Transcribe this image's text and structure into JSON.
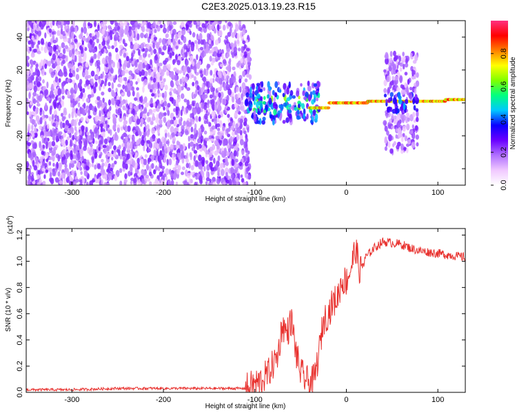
{
  "title": "C2E3.2025.013.19.23.R15",
  "colors": {
    "line": "#e8302d",
    "frame": "#000000",
    "colorbar_gradient": [
      "#ffffff",
      "#f0c8ff",
      "#b070ff",
      "#6a00ff",
      "#0a00ff",
      "#00c8ff",
      "#00ff80",
      "#80ff00",
      "#ffff00",
      "#ff8000",
      "#ff0000",
      "#ff3080"
    ]
  },
  "chart_data": [
    {
      "type": "heatmap",
      "xlabel": "Height of straight line (km)",
      "ylabel": "Frequency (Hz)",
      "xlim": [
        -350,
        130
      ],
      "ylim": [
        -50,
        50
      ],
      "x_ticks": [
        -300,
        -200,
        -100,
        0,
        100
      ],
      "x_tick_labels": [
        "-300",
        "-200",
        "-100",
        "0",
        "100"
      ],
      "y_ticks": [
        -40,
        -20,
        0,
        20,
        40
      ],
      "y_tick_labels": [
        "-40",
        "-20",
        "0",
        "20",
        "40"
      ],
      "colorbar": {
        "label": "Normalized spectral amplitude",
        "range": [
          0,
          1
        ],
        "ticks": [
          0.0,
          0.2,
          0.4,
          0.6,
          0.8
        ],
        "tick_labels": [
          "0.0",
          "0.2",
          "0.4",
          "0.6",
          "0.8"
        ]
      },
      "regions": [
        {
          "description": "broadband noise",
          "x_range": [
            -350,
            -105
          ],
          "y_range": [
            -50,
            50
          ],
          "amplitude": 0.2
        },
        {
          "description": "signal emerging",
          "x_range": [
            -105,
            -30
          ],
          "y_range": [
            -12,
            12
          ],
          "amplitude": 0.35
        },
        {
          "description": "narrow line near 0 Hz",
          "x_range": [
            -40,
            130
          ],
          "freq": [
            -3,
            0,
            1,
            1,
            2
          ],
          "amplitude": 0.9
        },
        {
          "description": "noise burst",
          "x_range": [
            42,
            78
          ],
          "y_range": [
            -30,
            30
          ],
          "amplitude": 0.2
        }
      ]
    },
    {
      "type": "line",
      "xlabel": "Height of straight line (km)",
      "ylabel": "SNR (10 * v/v)",
      "y_multiplier": "(x10",
      "y_multiplier_exp": "4",
      "y_multiplier_close": ")",
      "xlim": [
        -350,
        130
      ],
      "ylim": [
        0,
        1.25
      ],
      "x_ticks": [
        -300,
        -200,
        -100,
        0,
        100
      ],
      "x_tick_labels": [
        "-300",
        "-200",
        "-100",
        "0",
        "100"
      ],
      "y_ticks": [
        0.0,
        0.2,
        0.4,
        0.6,
        0.8,
        1.0,
        1.2
      ],
      "y_tick_labels": [
        "0.0",
        "0.2",
        "0.4",
        "0.6",
        "0.8",
        "1.0",
        "1.2"
      ],
      "series": [
        {
          "x": [
            -350,
            -300,
            -250,
            -200,
            -150,
            -110,
            -95,
            -85,
            -75,
            -70,
            -65,
            -60,
            -55,
            -50,
            -45,
            -40,
            -35,
            -30,
            -25,
            -20,
            -15,
            -10,
            -5,
            0,
            5,
            10,
            15,
            20,
            30,
            40,
            50,
            60,
            70,
            80,
            90,
            100,
            110,
            120,
            130
          ],
          "y": [
            0.02,
            0.02,
            0.03,
            0.03,
            0.03,
            0.03,
            0.08,
            0.15,
            0.28,
            0.52,
            0.45,
            0.55,
            0.3,
            0.15,
            0.1,
            0.07,
            0.1,
            0.3,
            0.55,
            0.6,
            0.68,
            0.72,
            0.85,
            0.85,
            0.95,
            1.1,
            0.92,
            1.02,
            1.1,
            1.15,
            1.14,
            1.13,
            1.1,
            1.08,
            1.07,
            1.06,
            1.05,
            1.04,
            1.03
          ]
        }
      ]
    }
  ]
}
